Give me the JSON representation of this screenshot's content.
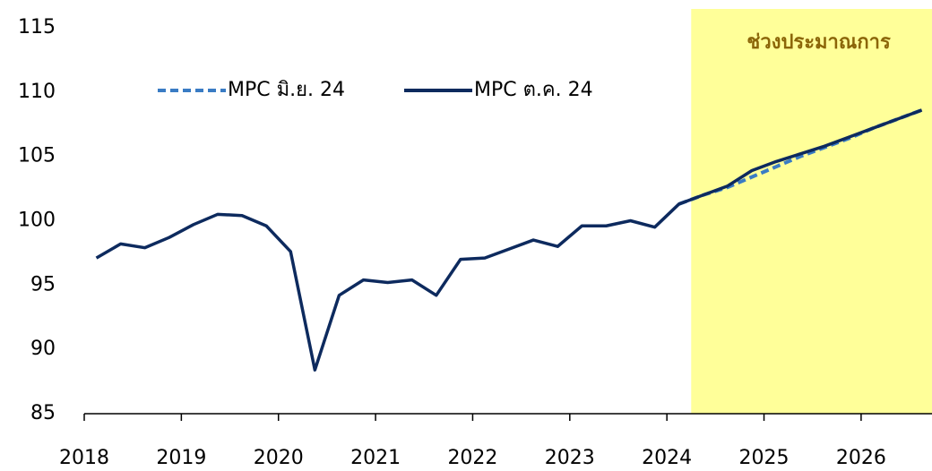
{
  "chart_data": {
    "type": "line",
    "annotation": "ช่วงประมาณการ",
    "shade_from": 2024.25,
    "shade_color": "#ffff99",
    "annotation_color": "#8b6508",
    "x": [
      2018.125,
      2018.375,
      2018.625,
      2018.875,
      2019.125,
      2019.375,
      2019.625,
      2019.875,
      2020.125,
      2020.375,
      2020.625,
      2020.875,
      2021.125,
      2021.375,
      2021.625,
      2021.875,
      2022.125,
      2022.375,
      2022.625,
      2022.875,
      2023.125,
      2023.375,
      2023.625,
      2023.875,
      2024.125,
      2024.375,
      2024.625,
      2024.875,
      2025.125,
      2025.375,
      2025.625,
      2025.875,
      2026.125,
      2026.375,
      2026.625
    ],
    "series": [
      {
        "name": "MPC มิ.ย. 24",
        "color": "#3a7cc4",
        "dashed": true,
        "values": [
          null,
          null,
          null,
          null,
          null,
          null,
          null,
          null,
          null,
          null,
          null,
          null,
          null,
          null,
          null,
          null,
          null,
          null,
          null,
          null,
          null,
          null,
          null,
          null,
          101.3,
          102.0,
          102.6,
          103.4,
          104.2,
          105.0,
          105.7,
          106.4,
          107.2,
          107.9,
          108.6
        ]
      },
      {
        "name": "MPC ต.ค. 24",
        "color": "#0d2a5e",
        "dashed": false,
        "values": [
          97.1,
          98.2,
          97.9,
          98.7,
          99.7,
          100.5,
          100.4,
          99.6,
          97.6,
          88.4,
          94.2,
          95.4,
          95.2,
          95.4,
          94.2,
          97.0,
          97.1,
          97.8,
          98.5,
          98.0,
          99.6,
          99.6,
          100.0,
          99.5,
          101.3,
          102.0,
          102.7,
          103.9,
          104.6,
          105.2,
          105.8,
          106.5,
          107.2,
          107.9,
          108.6
        ]
      }
    ],
    "xlim": [
      2018,
      2026.73
    ],
    "xticks": [
      2018,
      2019,
      2020,
      2021,
      2022,
      2023,
      2024,
      2025,
      2026
    ],
    "ylim": [
      85,
      115
    ],
    "yticks": [
      85,
      90,
      95,
      100,
      105,
      110,
      115
    ]
  }
}
